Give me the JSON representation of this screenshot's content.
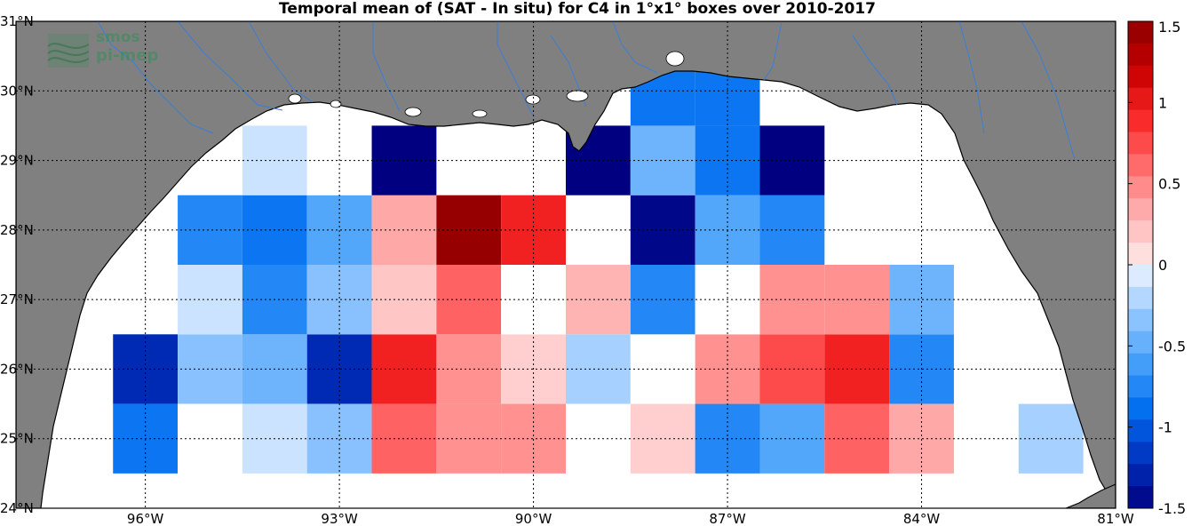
{
  "title": "Temporal mean of (SAT - In situ) for C4 in 1°x1° boxes over 2010-2017",
  "logo": {
    "line1": "smos",
    "line2": "pi-mep"
  },
  "colors": {
    "land": "#808080",
    "ocean": "#ffffff",
    "rivers": "#3a7ed8",
    "coast": "#000000"
  },
  "map": {
    "lon_range": [
      -98,
      -81
    ],
    "lat_range": [
      24,
      31
    ],
    "lon_ticks": [
      {
        "value": -96,
        "label": "96°W"
      },
      {
        "value": -93,
        "label": "93°W"
      },
      {
        "value": -90,
        "label": "90°W"
      },
      {
        "value": -87,
        "label": "87°W"
      },
      {
        "value": -84,
        "label": "84°W"
      },
      {
        "value": -81,
        "label": "81°W"
      }
    ],
    "lat_ticks": [
      {
        "value": 24,
        "label": "24°N"
      },
      {
        "value": 25,
        "label": "25°N"
      },
      {
        "value": 26,
        "label": "26°N"
      },
      {
        "value": 27,
        "label": "27°N"
      },
      {
        "value": 28,
        "label": "28°N"
      },
      {
        "value": 29,
        "label": "29°N"
      },
      {
        "value": 30,
        "label": "30°N"
      },
      {
        "value": 31,
        "label": "31°N"
      }
    ],
    "grid": true
  },
  "chart_data": {
    "type": "heatmap",
    "title": "Temporal mean of (SAT - In situ) for C4 in 1°x1° boxes over 2010-2017",
    "cell_size_deg": 1,
    "color_range": [
      -1.5,
      1.5
    ],
    "cells": [
      {
        "lon": -96.0,
        "lat": 26.0,
        "value": -1.25
      },
      {
        "lon": -95.0,
        "lat": 26.0,
        "value": -0.35
      },
      {
        "lon": -94.0,
        "lat": 26.0,
        "value": -0.45
      },
      {
        "lon": -93.0,
        "lat": 26.0,
        "value": -1.25
      },
      {
        "lon": -92.0,
        "lat": 26.0,
        "value": 0.95
      },
      {
        "lon": -91.0,
        "lat": 26.0,
        "value": 0.45
      },
      {
        "lon": -90.0,
        "lat": 26.0,
        "value": 0.15
      },
      {
        "lon": -89.0,
        "lat": 26.0,
        "value": -0.25
      },
      {
        "lon": -88.0,
        "lat": 26.0,
        "value": 0.0
      },
      {
        "lon": -87.0,
        "lat": 26.0,
        "value": 0.45
      },
      {
        "lon": -86.0,
        "lat": 26.0,
        "value": 0.75
      },
      {
        "lon": -85.0,
        "lat": 26.0,
        "value": 0.95
      },
      {
        "lon": -84.0,
        "lat": 26.0,
        "value": -0.75
      },
      {
        "lon": -96.0,
        "lat": 25.0,
        "value": -0.85
      },
      {
        "lon": -95.0,
        "lat": 25.0,
        "value": 0.0
      },
      {
        "lon": -94.0,
        "lat": 25.0,
        "value": -0.12
      },
      {
        "lon": -93.0,
        "lat": 25.0,
        "value": -0.35
      },
      {
        "lon": -92.0,
        "lat": 25.0,
        "value": 0.65
      },
      {
        "lon": -91.0,
        "lat": 25.0,
        "value": 0.45
      },
      {
        "lon": -90.0,
        "lat": 25.0,
        "value": 0.45
      },
      {
        "lon": -89.0,
        "lat": 25.0,
        "value": 0.0
      },
      {
        "lon": -88.0,
        "lat": 25.0,
        "value": 0.15
      },
      {
        "lon": -87.0,
        "lat": 25.0,
        "value": -0.75
      },
      {
        "lon": -86.0,
        "lat": 25.0,
        "value": -0.55
      },
      {
        "lon": -85.0,
        "lat": 25.0,
        "value": 0.65
      },
      {
        "lon": -84.0,
        "lat": 25.0,
        "value": 0.35
      },
      {
        "lon": -82.0,
        "lat": 25.0,
        "value": -0.25
      },
      {
        "lon": -95.0,
        "lat": 27.0,
        "value": -0.12
      },
      {
        "lon": -94.0,
        "lat": 27.0,
        "value": -0.75
      },
      {
        "lon": -93.0,
        "lat": 27.0,
        "value": -0.35
      },
      {
        "lon": -92.0,
        "lat": 27.0,
        "value": 0.2
      },
      {
        "lon": -91.0,
        "lat": 27.0,
        "value": 0.65
      },
      {
        "lon": -90.0,
        "lat": 27.0,
        "value": 0.0
      },
      {
        "lon": -89.0,
        "lat": 27.0,
        "value": 0.3
      },
      {
        "lon": -88.0,
        "lat": 27.0,
        "value": -0.75
      },
      {
        "lon": -87.0,
        "lat": 27.0,
        "value": 0.0
      },
      {
        "lon": -86.0,
        "lat": 27.0,
        "value": 0.45
      },
      {
        "lon": -85.0,
        "lat": 27.0,
        "value": 0.45
      },
      {
        "lon": -84.0,
        "lat": 27.0,
        "value": -0.45
      },
      {
        "lon": -95.0,
        "lat": 28.0,
        "value": -0.75
      },
      {
        "lon": -94.0,
        "lat": 28.0,
        "value": -0.85
      },
      {
        "lon": -93.0,
        "lat": 28.0,
        "value": -0.55
      },
      {
        "lon": -92.0,
        "lat": 28.0,
        "value": 0.35
      },
      {
        "lon": -91.0,
        "lat": 28.0,
        "value": 1.45
      },
      {
        "lon": -90.0,
        "lat": 28.0,
        "value": 0.95
      },
      {
        "lon": -89.0,
        "lat": 28.0,
        "value": 0.0
      },
      {
        "lon": -88.0,
        "lat": 28.0,
        "value": -1.45
      },
      {
        "lon": -87.0,
        "lat": 28.0,
        "value": -0.55
      },
      {
        "lon": -86.0,
        "lat": 28.0,
        "value": -0.75
      },
      {
        "lon": -94.0,
        "lat": 29.0,
        "value": -0.12
      },
      {
        "lon": -93.0,
        "lat": 29.0,
        "value": 0.0
      },
      {
        "lon": -92.0,
        "lat": 29.0,
        "value": -1.5
      },
      {
        "lon": -89.0,
        "lat": 29.0,
        "value": -1.5
      },
      {
        "lon": -88.0,
        "lat": 29.0,
        "value": -0.45
      },
      {
        "lon": -87.0,
        "lat": 29.0,
        "value": -0.85
      },
      {
        "lon": -86.0,
        "lat": 29.0,
        "value": -1.5
      },
      {
        "lon": -88.0,
        "lat": 30.0,
        "value": -0.85
      },
      {
        "lon": -87.0,
        "lat": 30.0,
        "value": -0.85
      }
    ]
  },
  "colorbar": {
    "min": -1.5,
    "max": 1.5,
    "levels": 22,
    "ticks": [
      {
        "value": 1.5,
        "label": "1.5"
      },
      {
        "value": 1,
        "label": "1"
      },
      {
        "value": 0.5,
        "label": "0.5"
      },
      {
        "value": 0,
        "label": "0"
      },
      {
        "value": -0.5,
        "label": "-0.5"
      },
      {
        "value": -1,
        "label": "-1"
      },
      {
        "value": -1.5,
        "label": "-1.5"
      }
    ]
  }
}
